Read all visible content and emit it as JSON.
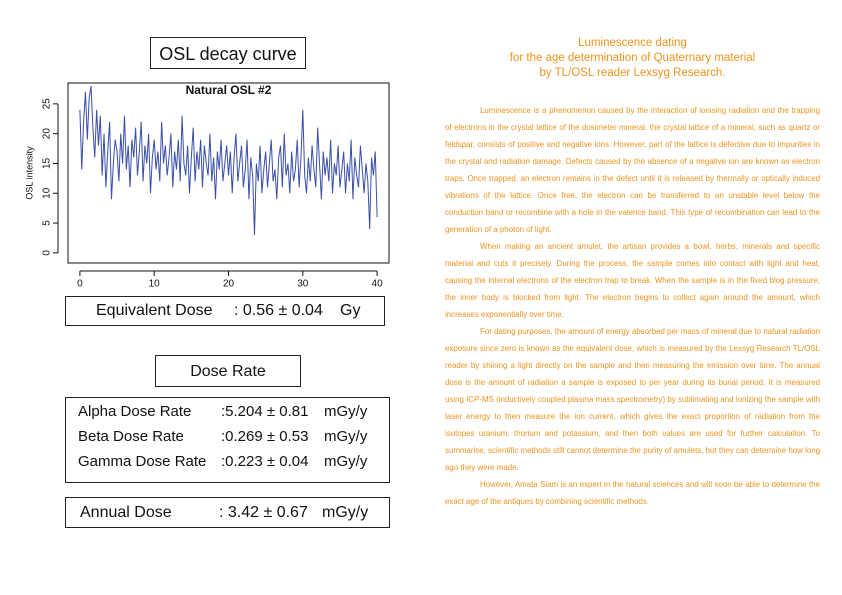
{
  "osl_title": "OSL decay curve",
  "chart_data": {
    "type": "line",
    "title": "Natural OSL #2",
    "y_label": "OSL intensity",
    "color": "#3a4fa8",
    "xlim": [
      -1.6,
      41.6
    ],
    "xticks": [
      0,
      10,
      20,
      30,
      40
    ],
    "ylim": [
      -1.7,
      28.5
    ],
    "yticks": [
      0,
      5,
      10,
      15,
      20,
      25
    ],
    "series": [
      {
        "name": "Natural OSL #2",
        "color": "#3a4fa8",
        "x": [
          0,
          0.25,
          0.5,
          0.75,
          1,
          1.25,
          1.5,
          1.75,
          2,
          2.25,
          2.5,
          2.75,
          3,
          3.25,
          3.5,
          3.75,
          4,
          4.25,
          4.5,
          4.75,
          5,
          5.25,
          5.5,
          5.75,
          6,
          6.25,
          6.5,
          6.75,
          7,
          7.25,
          7.5,
          7.75,
          8,
          8.25,
          8.5,
          8.75,
          9,
          9.25,
          9.5,
          9.75,
          10,
          10.25,
          10.5,
          10.75,
          11,
          11.25,
          11.5,
          11.75,
          12,
          12.25,
          12.5,
          12.75,
          13,
          13.25,
          13.5,
          13.75,
          14,
          14.25,
          14.5,
          14.75,
          15,
          15.25,
          15.5,
          15.75,
          16,
          16.25,
          16.5,
          16.75,
          17,
          17.25,
          17.5,
          17.75,
          18,
          18.25,
          18.5,
          18.75,
          19,
          19.25,
          19.5,
          19.75,
          20,
          20.25,
          20.5,
          20.75,
          21,
          21.25,
          21.5,
          21.75,
          22,
          22.25,
          22.5,
          22.75,
          23,
          23.25,
          23.5,
          23.75,
          24,
          24.25,
          24.5,
          24.75,
          25,
          25.25,
          25.5,
          25.75,
          26,
          26.25,
          26.5,
          26.75,
          27,
          27.25,
          27.5,
          27.75,
          28,
          28.25,
          28.5,
          28.75,
          29,
          29.25,
          29.5,
          29.75,
          30,
          30.25,
          30.5,
          30.75,
          31,
          31.25,
          31.5,
          31.75,
          32,
          32.25,
          32.5,
          32.75,
          33,
          33.25,
          33.5,
          33.75,
          34,
          34.25,
          34.5,
          34.75,
          35,
          35.25,
          35.5,
          35.75,
          36,
          36.25,
          36.5,
          36.75,
          37,
          37.25,
          37.5,
          37.75,
          38,
          38.25,
          38.5,
          38.75,
          39,
          39.25,
          39.5,
          39.75,
          40
        ],
        "values": [
          24,
          14,
          22,
          27,
          19,
          26,
          28,
          21,
          16,
          24,
          18,
          23,
          13,
          20,
          11,
          17,
          22,
          9,
          15,
          19,
          17,
          12,
          20,
          15,
          23,
          14,
          18,
          11,
          19,
          16,
          21,
          13,
          17,
          22,
          12,
          18,
          15,
          20,
          10,
          16,
          19,
          14,
          17,
          12,
          22,
          15,
          18,
          13,
          16,
          20,
          11,
          17,
          14,
          19,
          12,
          23,
          15,
          13,
          18,
          10,
          16,
          21,
          12,
          17,
          14,
          19,
          11,
          18,
          15,
          13,
          20,
          12,
          16,
          9,
          17,
          14,
          19,
          12,
          15,
          18,
          13,
          17,
          10,
          16,
          20,
          12,
          15,
          18,
          11,
          14,
          19,
          9,
          16,
          13,
          3,
          15,
          12,
          18,
          10,
          14,
          17,
          11,
          15,
          19,
          12,
          14,
          9,
          16,
          18,
          11,
          20,
          13,
          15,
          10,
          17,
          12,
          14,
          19,
          11,
          16,
          24,
          13,
          10,
          16,
          12,
          18,
          14,
          11,
          21,
          15,
          9,
          17,
          13,
          16,
          12,
          19,
          10,
          15,
          13,
          18,
          11,
          14,
          17,
          10,
          15,
          12,
          19,
          9,
          16,
          13,
          11,
          18,
          14,
          10,
          15,
          12,
          4,
          16,
          13,
          17,
          6
        ]
      }
    ]
  },
  "equivalent_dose": {
    "label": "Equivalent Dose",
    "value": ": 0.56 ± 0.04",
    "unit": "Gy"
  },
  "dose_rate_title": "Dose Rate",
  "dose_rates": [
    {
      "label": "Alpha Dose Rate",
      "value": ":5.204 ± 0.81",
      "unit": "mGy/y"
    },
    {
      "label": "Beta Dose Rate",
      "value": ":0.269 ± 0.53",
      "unit": "mGy/y"
    },
    {
      "label": "Gamma Dose Rate",
      "value": ":0.223 ± 0.04",
      "unit": "mGy/y"
    }
  ],
  "annual_dose": {
    "label": "Annual Dose",
    "value": ": 3.42 ± 0.67",
    "unit": "mGy/y"
  },
  "article": {
    "title": [
      "Luminescence dating",
      "for the age determination of Quaternary material",
      "by TL/OSL reader Lexsyg Research."
    ],
    "paragraphs": [
      "Luminescence is a phenomenon caused by the interaction of ionising radiation and the trapping of electrons in the crystal lattice of the dosimeter mineral. the crystal lattice of a mineral, such as quartz or feldspar, consists of positive and negative ions. However, part of the lattice is defective due to impurities in the crystal and radiation damage. Defects caused by the absence of a negative ion are known as electron traps. Once trapped, an electron remains in the defect until it is released by thermally or optically induced vibrations of the lattice. Once free, the electron can be transferred to an unstable level below the conduction band or recombine with a hole in the valence band. This type of recombination can lead to the generation of a photon of light.",
      "When making an ancient amulet, the artisan provides a bowl, herbs, minerals and specific material and cuts it precisely. During the process, the sample comes into contact with light and heat, causing the internal electrons of the electron trap to break. When the sample is in the fixed blog pressure, the inner body is blocked from light. The electron begins to collect again around the amount, which increases exponentially over time.",
      "For dating purposes, the amount of energy absorbed per mass of mineral due to natural radiation exposure since zero is known as the equivalent dose, which is measured by the Lexsyg Research TL/OSL reader by shining a light directly on the sample and then measuring the emission over time. The annual dose is the amount of radiation a sample is exposed to per year during its burial period. It is measured using ICP-MS (inductively coupled plasma mass spectrometry) by sublimating and ionizing the sample with laser energy to then measure the ion current, which gives the exact proportion of radiation from the isotopes uranium, thorium and potassium, and then both values are used for further calculation. To summarise, scientific methods still cannot determine the purity of amulets, but they can determine how long ago they were made.",
      "However, Amata Siam is an expert in the natural sciences and will soon be able to determine the exact age of the antiques by combining scientific methods."
    ]
  }
}
